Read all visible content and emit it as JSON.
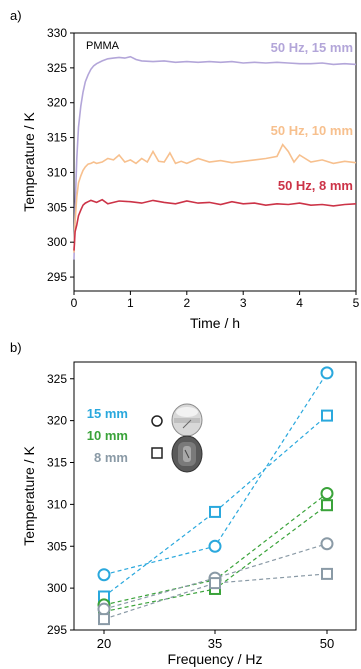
{
  "chart_data": [
    {
      "panel_label": "a)",
      "type": "line",
      "annotation": "PMMA",
      "xlabel": "Time / h",
      "ylabel": "Temperature / K",
      "xlim": [
        0,
        5
      ],
      "ylim": [
        293,
        330
      ],
      "xticks": [
        0,
        1,
        2,
        3,
        4,
        5
      ],
      "yticks": [
        295,
        300,
        305,
        310,
        315,
        320,
        325,
        330
      ],
      "grid": false,
      "series": [
        {
          "name": "50 Hz, 15 mm",
          "color": "#b3a6d9",
          "x": [
            0,
            0.02,
            0.05,
            0.08,
            0.12,
            0.16,
            0.2,
            0.25,
            0.3,
            0.35,
            0.4,
            0.5,
            0.6,
            0.7,
            0.8,
            0.9,
            1.0,
            1.1,
            1.2,
            1.4,
            1.6,
            1.8,
            2.0,
            2.2,
            2.4,
            2.6,
            2.8,
            3.0,
            3.2,
            3.4,
            3.6,
            3.8,
            4.0,
            4.2,
            4.4,
            4.6,
            4.8,
            5.0
          ],
          "values": [
            297.5,
            305,
            312,
            316.5,
            319.5,
            321.5,
            323,
            324,
            324.8,
            325.3,
            325.6,
            326,
            326.3,
            326.4,
            326.5,
            326.4,
            326.6,
            326.2,
            326.0,
            325.9,
            326.0,
            325.8,
            325.9,
            325.8,
            325.9,
            325.8,
            325.9,
            325.7,
            325.8,
            325.7,
            325.8,
            325.7,
            325.6,
            325.6,
            325.7,
            325.5,
            325.6,
            325.5
          ]
        },
        {
          "name": "50 Hz, 10 mm",
          "color": "#f7c08e",
          "x": [
            0,
            0.02,
            0.05,
            0.08,
            0.12,
            0.16,
            0.2,
            0.25,
            0.3,
            0.35,
            0.4,
            0.5,
            0.6,
            0.7,
            0.8,
            0.9,
            1.0,
            1.1,
            1.2,
            1.3,
            1.4,
            1.5,
            1.6,
            1.7,
            1.8,
            1.9,
            2.0,
            2.2,
            2.4,
            2.6,
            2.8,
            3.0,
            3.2,
            3.4,
            3.6,
            3.7,
            3.8,
            3.9,
            4.0,
            4.2,
            4.4,
            4.6,
            4.8,
            5.0
          ],
          "values": [
            298.5,
            303,
            306.5,
            308.5,
            309.5,
            310.3,
            310.8,
            311.2,
            311.3,
            311.5,
            311.3,
            311.5,
            312.0,
            311.8,
            312.5,
            311.5,
            311.8,
            311.3,
            312.0,
            311.5,
            313.0,
            311.6,
            311.5,
            312.8,
            311.3,
            311.6,
            311.3,
            312.0,
            311.5,
            311.7,
            311.4,
            311.6,
            311.8,
            312.0,
            312.3,
            314.0,
            313.0,
            311.5,
            312.5,
            311.5,
            311.8,
            311.3,
            311.6,
            311.4
          ]
        },
        {
          "name": "50 Hz, 8 mm",
          "color": "#cc3347",
          "x": [
            0,
            0.02,
            0.05,
            0.08,
            0.12,
            0.16,
            0.2,
            0.25,
            0.3,
            0.4,
            0.5,
            0.6,
            0.8,
            1.0,
            1.2,
            1.4,
            1.6,
            1.8,
            2.0,
            2.2,
            2.4,
            2.6,
            2.8,
            3.0,
            3.2,
            3.4,
            3.6,
            3.8,
            4.0,
            4.2,
            4.4,
            4.6,
            4.8,
            5.0
          ],
          "values": [
            298.8,
            301.5,
            302.5,
            303.8,
            304.6,
            305.3,
            305.6,
            305.8,
            306.0,
            305.7,
            306.1,
            305.5,
            305.9,
            305.8,
            305.6,
            306.0,
            305.7,
            305.5,
            305.9,
            305.6,
            305.7,
            305.4,
            305.8,
            305.5,
            305.6,
            305.3,
            305.5,
            305.4,
            305.6,
            305.3,
            305.4,
            305.2,
            305.4,
            305.5
          ]
        }
      ]
    },
    {
      "panel_label": "b)",
      "type": "scatter",
      "xlabel": "Frequency / Hz",
      "ylabel": "Temperature / K",
      "categories": [
        "20",
        "35",
        "50"
      ],
      "ylim": [
        295,
        327
      ],
      "yticks": [
        295,
        300,
        305,
        310,
        315,
        320,
        325
      ],
      "grid": false,
      "legend_labels": [
        {
          "text": "15 mm",
          "color": "#2aa8dd"
        },
        {
          "text": "10 mm",
          "color": "#3aa33a"
        },
        {
          "text": "8 mm",
          "color": "#8a9aa6"
        }
      ],
      "series": [
        {
          "name": "15 mm",
          "marker": "circle",
          "color": "#2aa8dd",
          "values": [
            301.6,
            305.0,
            325.7
          ]
        },
        {
          "name": "15 mm",
          "marker": "square",
          "color": "#2aa8dd",
          "values": [
            299.0,
            309.1,
            320.6
          ]
        },
        {
          "name": "10 mm",
          "marker": "circle",
          "color": "#3aa33a",
          "values": [
            298.0,
            301.0,
            311.3
          ]
        },
        {
          "name": "10 mm",
          "marker": "square",
          "color": "#3aa33a",
          "values": [
            297.2,
            299.9,
            309.9
          ]
        },
        {
          "name": "8 mm",
          "marker": "circle",
          "color": "#8a9aa6",
          "values": [
            297.5,
            301.2,
            305.3
          ]
        },
        {
          "name": "8 mm",
          "marker": "square",
          "color": "#8a9aa6",
          "values": [
            296.3,
            300.6,
            301.7
          ]
        }
      ]
    }
  ]
}
